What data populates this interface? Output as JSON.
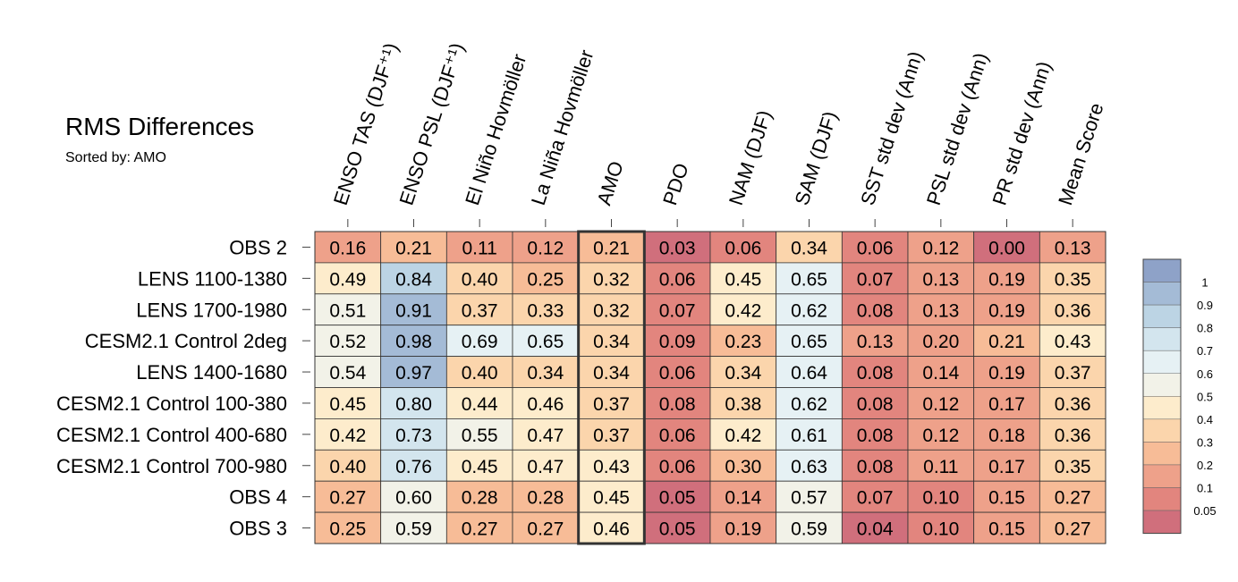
{
  "chart_data": {
    "type": "heatmap",
    "title": "RMS Differences",
    "subtitle": "Sorted by: AMO",
    "columns": [
      "ENSO TAS (DJF⁺¹)",
      "ENSO PSL (DJF⁺¹)",
      "El Niño Hovmöller",
      "La Niña Hovmöller",
      "AMO",
      "PDO",
      "NAM (DJF)",
      "SAM (DJF)",
      "SST std dev (Ann)",
      "PSL std dev (Ann)",
      "PR std dev (Ann)",
      "Mean Score"
    ],
    "rows": [
      "OBS 2",
      "LENS 1100-1380",
      "LENS 1700-1980",
      "CESM2.1 Control 2deg",
      "LENS 1400-1680",
      "CESM2.1 Control 100-380",
      "CESM2.1 Control 400-680",
      "CESM2.1 Control 700-980",
      "OBS 4",
      "OBS 3"
    ],
    "values": [
      [
        0.16,
        0.21,
        0.11,
        0.12,
        0.21,
        0.03,
        0.06,
        0.34,
        0.06,
        0.12,
        0.0,
        0.13
      ],
      [
        0.49,
        0.84,
        0.4,
        0.25,
        0.32,
        0.06,
        0.45,
        0.65,
        0.07,
        0.13,
        0.19,
        0.35
      ],
      [
        0.51,
        0.91,
        0.37,
        0.33,
        0.32,
        0.07,
        0.42,
        0.62,
        0.08,
        0.13,
        0.19,
        0.36
      ],
      [
        0.52,
        0.98,
        0.69,
        0.65,
        0.34,
        0.09,
        0.23,
        0.65,
        0.13,
        0.2,
        0.21,
        0.43
      ],
      [
        0.54,
        0.97,
        0.4,
        0.34,
        0.34,
        0.06,
        0.34,
        0.64,
        0.08,
        0.14,
        0.19,
        0.37
      ],
      [
        0.45,
        0.8,
        0.44,
        0.46,
        0.37,
        0.08,
        0.38,
        0.62,
        0.08,
        0.12,
        0.17,
        0.36
      ],
      [
        0.42,
        0.73,
        0.55,
        0.47,
        0.37,
        0.06,
        0.42,
        0.61,
        0.08,
        0.12,
        0.18,
        0.36
      ],
      [
        0.4,
        0.76,
        0.45,
        0.47,
        0.43,
        0.06,
        0.3,
        0.63,
        0.08,
        0.11,
        0.17,
        0.35
      ],
      [
        0.27,
        0.6,
        0.28,
        0.28,
        0.45,
        0.05,
        0.14,
        0.57,
        0.07,
        0.1,
        0.15,
        0.27
      ],
      [
        0.25,
        0.59,
        0.27,
        0.27,
        0.46,
        0.05,
        0.19,
        0.59,
        0.04,
        0.1,
        0.15,
        0.27
      ]
    ],
    "highlighted_column": "AMO",
    "colorbar": {
      "tick_labels": [
        "1",
        "0.9",
        "0.8",
        "0.7",
        "0.6",
        "0.5",
        "0.4",
        "0.3",
        "0.2",
        "0.1",
        "0.05"
      ],
      "colors": [
        "#8ea2c8",
        "#a4bbd6",
        "#bcd4e4",
        "#d3e5ee",
        "#e6f1f4",
        "#f2f2e8",
        "#fdeccc",
        "#fbd5ac",
        "#f7bc97",
        "#eea18a",
        "#e2857e",
        "#d06f7c"
      ],
      "bounds": [
        1.1,
        1.0,
        0.9,
        0.8,
        0.7,
        0.6,
        0.5,
        0.4,
        0.3,
        0.2,
        0.1,
        0.05,
        0
      ]
    }
  }
}
